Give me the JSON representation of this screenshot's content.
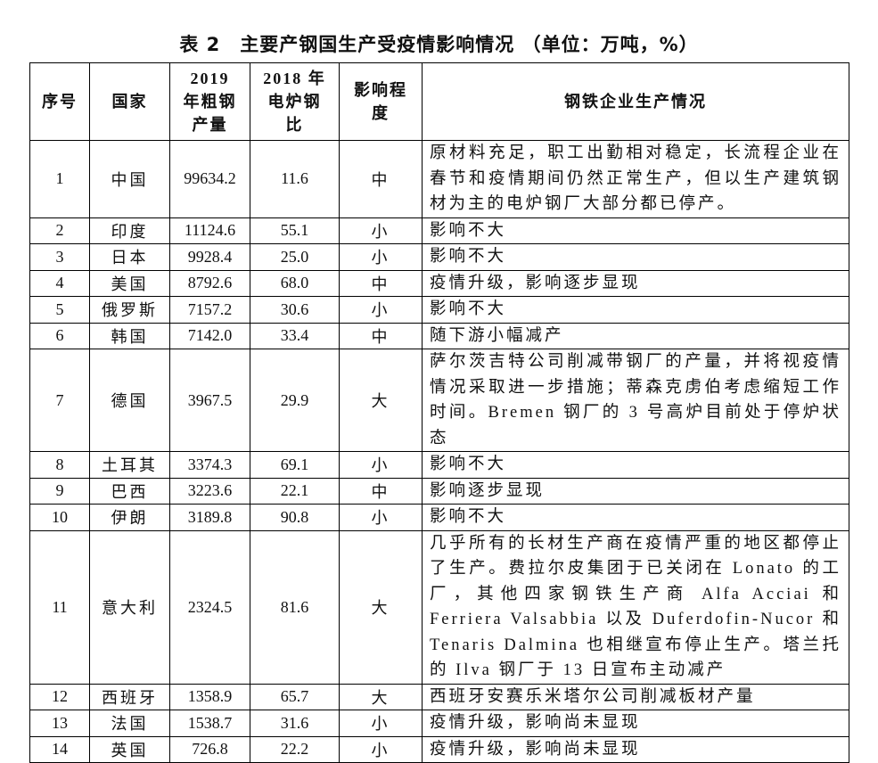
{
  "title": "表 2　主要产钢国生产受疫情影响情况 （单位：万吨，%）",
  "table": {
    "header": [
      "序号",
      "国家",
      "2019 年粗钢产量",
      "2018 年电炉钢比",
      "影响程度",
      "钢铁企业生产情况"
    ],
    "rows": [
      [
        "1",
        "中国",
        "99634.2",
        "11.6",
        "中",
        "原材料充足，职工出勤相对稳定，长流程企业在春节和疫情期间仍然正常生产，但以生产建筑钢材为主的电炉钢厂大部分都已停产。"
      ],
      [
        "2",
        "印度",
        "11124.6",
        "55.1",
        "小",
        "影响不大"
      ],
      [
        "3",
        "日本",
        "9928.4",
        "25.0",
        "小",
        "影响不大"
      ],
      [
        "4",
        "美国",
        "8792.6",
        "68.0",
        "中",
        "疫情升级，影响逐步显现"
      ],
      [
        "5",
        "俄罗斯",
        "7157.2",
        "30.6",
        "小",
        "影响不大"
      ],
      [
        "6",
        "韩国",
        "7142.0",
        "33.4",
        "中",
        "随下游小幅减产"
      ],
      [
        "7",
        "德国",
        "3967.5",
        "29.9",
        "大",
        "萨尔茨吉特公司削减带钢厂的产量，并将视疫情情况采取进一步措施；蒂森克虏伯考虑缩短工作时间。Bremen 钢厂的 3 号高炉目前处于停炉状态"
      ],
      [
        "8",
        "土耳其",
        "3374.3",
        "69.1",
        "小",
        "影响不大"
      ],
      [
        "9",
        "巴西",
        "3223.6",
        "22.1",
        "中",
        "影响逐步显现"
      ],
      [
        "10",
        "伊朗",
        "3189.8",
        "90.8",
        "小",
        "影响不大"
      ],
      [
        "11",
        "意大利",
        "2324.5",
        "81.6",
        "大",
        "几乎所有的长材生产商在疫情严重的地区都停止了生产。费拉尔皮集团于已关闭在 Lonato 的工厂，其他四家钢铁生产商 Alfa Acciai 和 Ferriera Valsabbia 以及 Duferdofin-Nucor 和 Tenaris Dalmina 也相继宣布停止生产。塔兰托的 Ilva 钢厂于 13 日宣布主动减产"
      ],
      [
        "12",
        "西班牙",
        "1358.9",
        "65.7",
        "大",
        "西班牙安赛乐米塔尔公司削减板材产量"
      ],
      [
        "13",
        "法国",
        "1538.7",
        "31.6",
        "小",
        "疫情升级，影响尚未显现"
      ],
      [
        "14",
        "英国",
        "726.8",
        "22.2",
        "小",
        "疫情升级，影响尚未显现"
      ]
    ]
  }
}
